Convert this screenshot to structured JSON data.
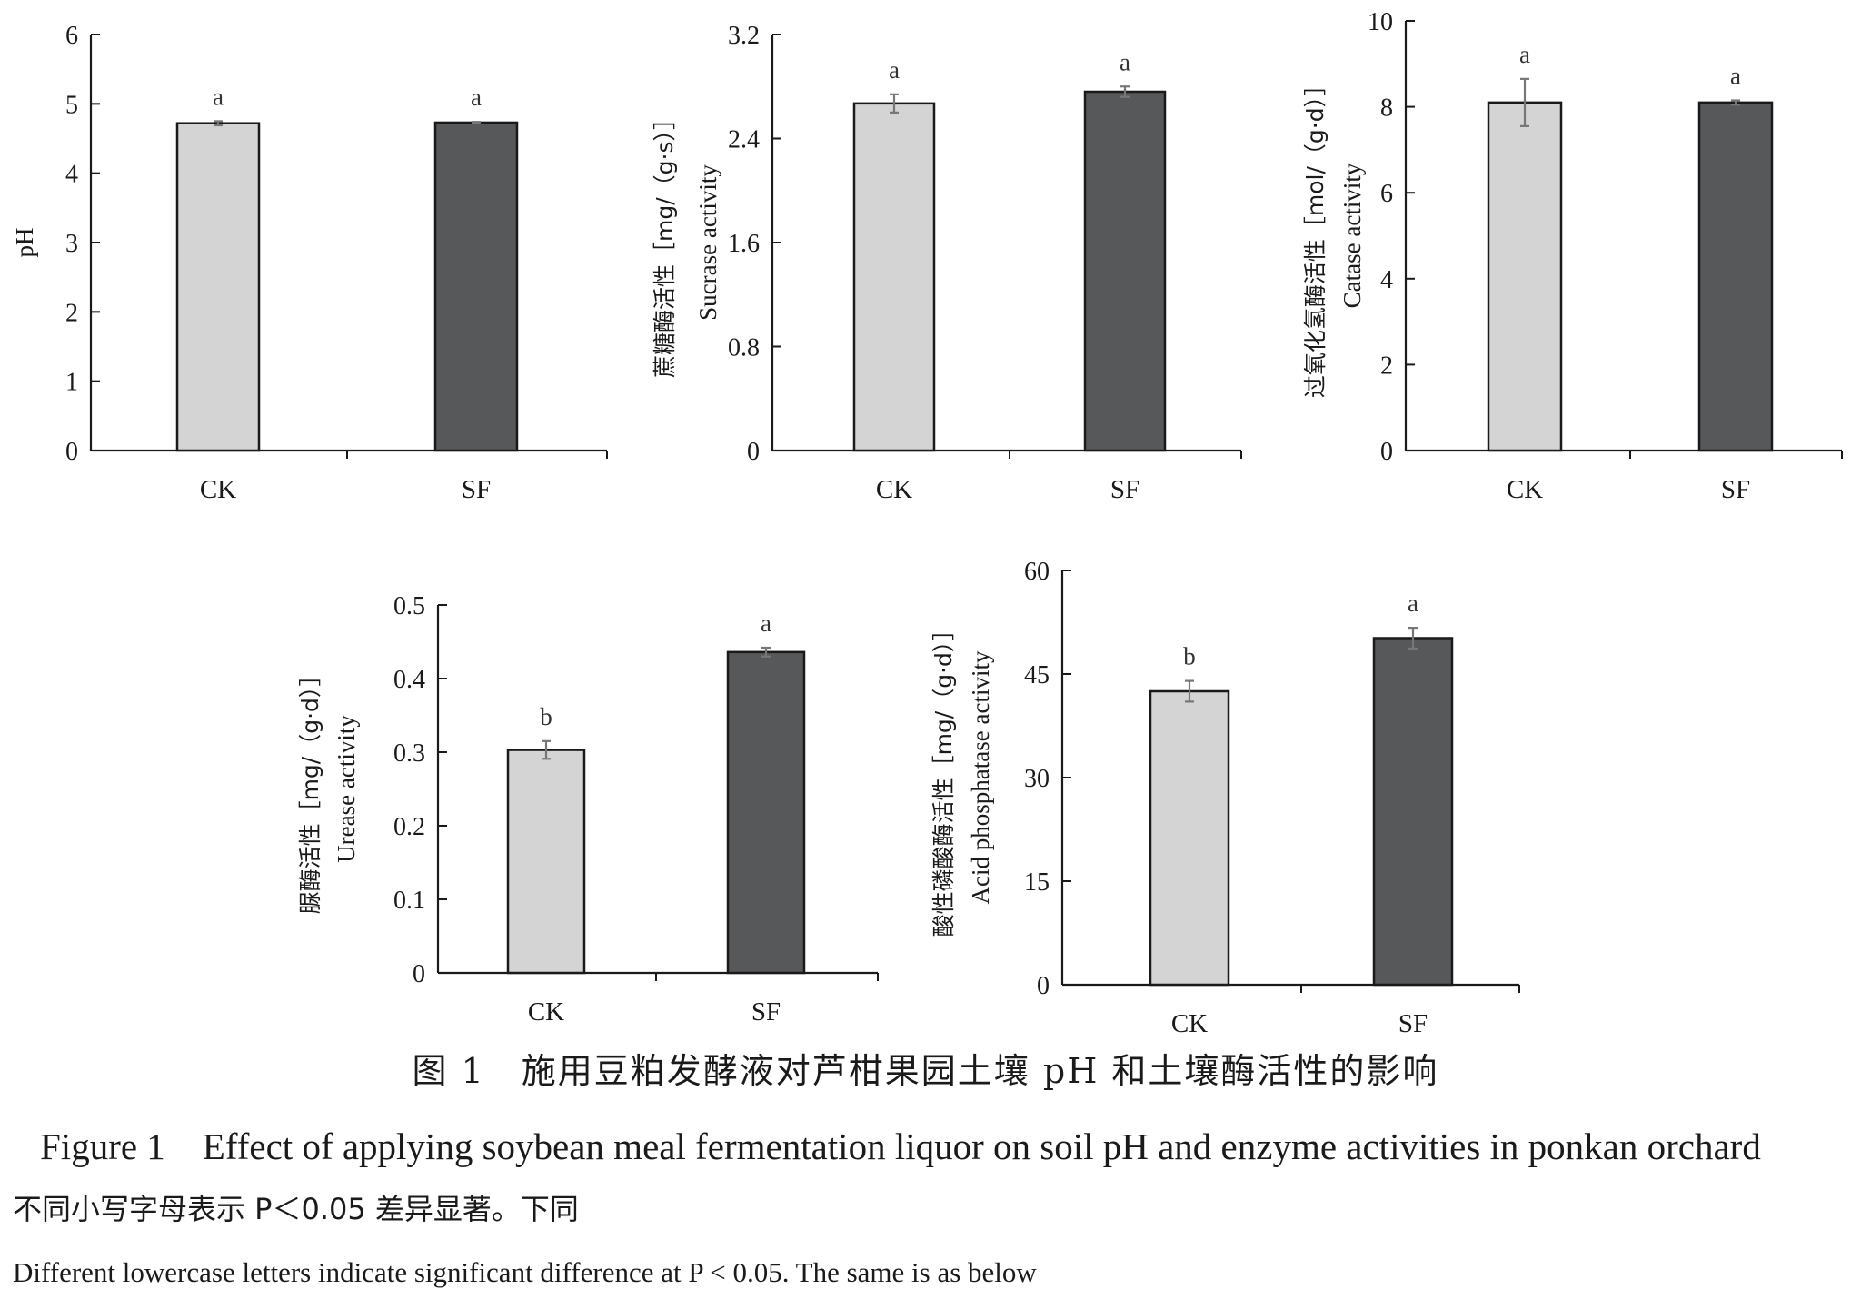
{
  "chart_data": [
    {
      "type": "bar",
      "categories": [
        "CK",
        "SF"
      ],
      "values": [
        4.72,
        4.73
      ],
      "errors": [
        0.03,
        0.01
      ],
      "significance": [
        "a",
        "a"
      ],
      "ylabel_cn": "",
      "ylabel_en": "pH",
      "ylim": [
        0,
        6
      ],
      "yticks": [
        "0",
        "1",
        "2",
        "3",
        "4",
        "5",
        "6"
      ],
      "grid": false
    },
    {
      "type": "bar",
      "categories": [
        "CK",
        "SF"
      ],
      "values": [
        2.67,
        2.76
      ],
      "errors": [
        0.07,
        0.04
      ],
      "significance": [
        "a",
        "a"
      ],
      "ylabel_cn": "蔗糖酶活性［mg/（g·s）］",
      "ylabel_en": "Sucrase activity",
      "ylim": [
        0,
        3.2
      ],
      "yticks": [
        "0",
        "0.8",
        "1.6",
        "2.4",
        "3.2"
      ],
      "grid": false
    },
    {
      "type": "bar",
      "categories": [
        "CK",
        "SF"
      ],
      "values": [
        8.1,
        8.1
      ],
      "errors": [
        0.55,
        0.05
      ],
      "significance": [
        "a",
        "a"
      ],
      "ylabel_cn": "过氧化氢酶活性［mol/（g·d）］",
      "ylabel_en": "Catase activity",
      "ylim": [
        0,
        10
      ],
      "yticks": [
        "0",
        "2",
        "4",
        "6",
        "8",
        "10"
      ],
      "grid": false
    },
    {
      "type": "bar",
      "categories": [
        "CK",
        "SF"
      ],
      "values": [
        0.303,
        0.436
      ],
      "errors": [
        0.012,
        0.006
      ],
      "significance": [
        "b",
        "a"
      ],
      "ylabel_cn": "脲酶活性［mg/（g·d）］",
      "ylabel_en": "Urease activity",
      "ylim": [
        0,
        0.5
      ],
      "yticks": [
        "0",
        "0.1",
        "0.2",
        "0.3",
        "0.4",
        "0.5"
      ],
      "grid": false
    },
    {
      "type": "bar",
      "categories": [
        "CK",
        "SF"
      ],
      "values": [
        42.5,
        50.2
      ],
      "errors": [
        1.5,
        1.5
      ],
      "significance": [
        "b",
        "a"
      ],
      "ylabel_cn": "酸性磷酸酶活性［mg/（g·d）］",
      "ylabel_en": "Acid phosphatase activity",
      "ylim": [
        0,
        60
      ],
      "yticks": [
        "0",
        "15",
        "30",
        "45",
        "60"
      ],
      "grid": false
    }
  ],
  "colors": {
    "ck_fill": "#d4d4d4",
    "sf_fill": "#57585a",
    "bar_stroke": "#1a1a1a",
    "axis": "#1a1a1a",
    "error_bar": "#777777"
  },
  "captions": {
    "figure_cn": "图 1　施用豆粕发酵液对芦柑果园土壤 pH 和土壤酶活性的影响",
    "figure_en": "Figure 1　Effect of applying soybean meal fermentation liquor on soil pH and enzyme activities in ponkan orchard",
    "note_cn": "不同小写字母表示 P＜0.05 差异显著。下同",
    "note_en": "Different lowercase letters indicate significant difference at P < 0.05. The same is as below"
  }
}
